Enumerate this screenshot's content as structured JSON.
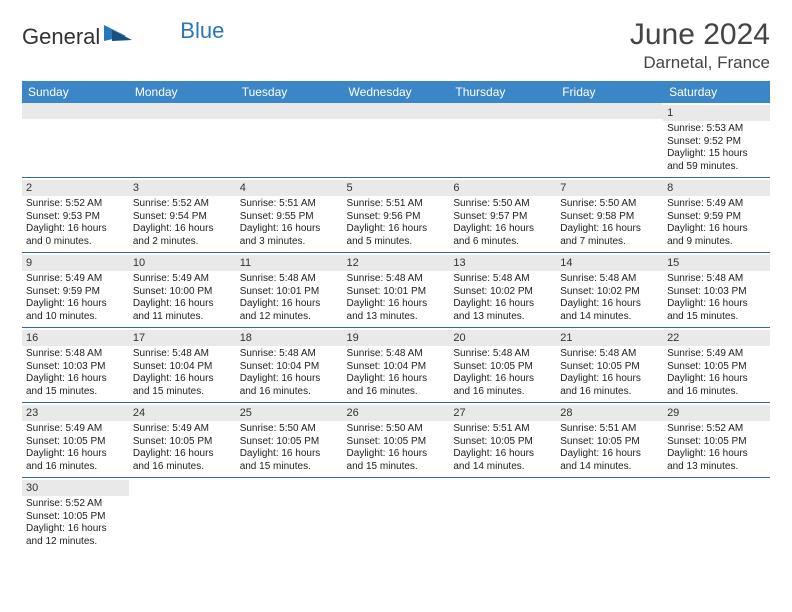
{
  "brand": {
    "part1": "General",
    "part2": "Blue"
  },
  "title": "June 2024",
  "location": "Darnetal, France",
  "colors": {
    "header_bg": "#3b86c6",
    "header_text": "#ffffff",
    "daynum_bg": "#e9e9e9",
    "cell_border": "#2f6aa5",
    "brand_blue": "#2a76bb"
  },
  "weekdays": [
    "Sunday",
    "Monday",
    "Tuesday",
    "Wednesday",
    "Thursday",
    "Friday",
    "Saturday"
  ],
  "weeks": [
    [
      null,
      null,
      null,
      null,
      null,
      null,
      {
        "n": "1",
        "sunrise": "Sunrise: 5:53 AM",
        "sunset": "Sunset: 9:52 PM",
        "day1": "Daylight: 15 hours",
        "day2": "and 59 minutes."
      }
    ],
    [
      {
        "n": "2",
        "sunrise": "Sunrise: 5:52 AM",
        "sunset": "Sunset: 9:53 PM",
        "day1": "Daylight: 16 hours",
        "day2": "and 0 minutes."
      },
      {
        "n": "3",
        "sunrise": "Sunrise: 5:52 AM",
        "sunset": "Sunset: 9:54 PM",
        "day1": "Daylight: 16 hours",
        "day2": "and 2 minutes."
      },
      {
        "n": "4",
        "sunrise": "Sunrise: 5:51 AM",
        "sunset": "Sunset: 9:55 PM",
        "day1": "Daylight: 16 hours",
        "day2": "and 3 minutes."
      },
      {
        "n": "5",
        "sunrise": "Sunrise: 5:51 AM",
        "sunset": "Sunset: 9:56 PM",
        "day1": "Daylight: 16 hours",
        "day2": "and 5 minutes."
      },
      {
        "n": "6",
        "sunrise": "Sunrise: 5:50 AM",
        "sunset": "Sunset: 9:57 PM",
        "day1": "Daylight: 16 hours",
        "day2": "and 6 minutes."
      },
      {
        "n": "7",
        "sunrise": "Sunrise: 5:50 AM",
        "sunset": "Sunset: 9:58 PM",
        "day1": "Daylight: 16 hours",
        "day2": "and 7 minutes."
      },
      {
        "n": "8",
        "sunrise": "Sunrise: 5:49 AM",
        "sunset": "Sunset: 9:59 PM",
        "day1": "Daylight: 16 hours",
        "day2": "and 9 minutes."
      }
    ],
    [
      {
        "n": "9",
        "sunrise": "Sunrise: 5:49 AM",
        "sunset": "Sunset: 9:59 PM",
        "day1": "Daylight: 16 hours",
        "day2": "and 10 minutes."
      },
      {
        "n": "10",
        "sunrise": "Sunrise: 5:49 AM",
        "sunset": "Sunset: 10:00 PM",
        "day1": "Daylight: 16 hours",
        "day2": "and 11 minutes."
      },
      {
        "n": "11",
        "sunrise": "Sunrise: 5:48 AM",
        "sunset": "Sunset: 10:01 PM",
        "day1": "Daylight: 16 hours",
        "day2": "and 12 minutes."
      },
      {
        "n": "12",
        "sunrise": "Sunrise: 5:48 AM",
        "sunset": "Sunset: 10:01 PM",
        "day1": "Daylight: 16 hours",
        "day2": "and 13 minutes."
      },
      {
        "n": "13",
        "sunrise": "Sunrise: 5:48 AM",
        "sunset": "Sunset: 10:02 PM",
        "day1": "Daylight: 16 hours",
        "day2": "and 13 minutes."
      },
      {
        "n": "14",
        "sunrise": "Sunrise: 5:48 AM",
        "sunset": "Sunset: 10:02 PM",
        "day1": "Daylight: 16 hours",
        "day2": "and 14 minutes."
      },
      {
        "n": "15",
        "sunrise": "Sunrise: 5:48 AM",
        "sunset": "Sunset: 10:03 PM",
        "day1": "Daylight: 16 hours",
        "day2": "and 15 minutes."
      }
    ],
    [
      {
        "n": "16",
        "sunrise": "Sunrise: 5:48 AM",
        "sunset": "Sunset: 10:03 PM",
        "day1": "Daylight: 16 hours",
        "day2": "and 15 minutes."
      },
      {
        "n": "17",
        "sunrise": "Sunrise: 5:48 AM",
        "sunset": "Sunset: 10:04 PM",
        "day1": "Daylight: 16 hours",
        "day2": "and 15 minutes."
      },
      {
        "n": "18",
        "sunrise": "Sunrise: 5:48 AM",
        "sunset": "Sunset: 10:04 PM",
        "day1": "Daylight: 16 hours",
        "day2": "and 16 minutes."
      },
      {
        "n": "19",
        "sunrise": "Sunrise: 5:48 AM",
        "sunset": "Sunset: 10:04 PM",
        "day1": "Daylight: 16 hours",
        "day2": "and 16 minutes."
      },
      {
        "n": "20",
        "sunrise": "Sunrise: 5:48 AM",
        "sunset": "Sunset: 10:05 PM",
        "day1": "Daylight: 16 hours",
        "day2": "and 16 minutes."
      },
      {
        "n": "21",
        "sunrise": "Sunrise: 5:48 AM",
        "sunset": "Sunset: 10:05 PM",
        "day1": "Daylight: 16 hours",
        "day2": "and 16 minutes."
      },
      {
        "n": "22",
        "sunrise": "Sunrise: 5:49 AM",
        "sunset": "Sunset: 10:05 PM",
        "day1": "Daylight: 16 hours",
        "day2": "and 16 minutes."
      }
    ],
    [
      {
        "n": "23",
        "sunrise": "Sunrise: 5:49 AM",
        "sunset": "Sunset: 10:05 PM",
        "day1": "Daylight: 16 hours",
        "day2": "and 16 minutes."
      },
      {
        "n": "24",
        "sunrise": "Sunrise: 5:49 AM",
        "sunset": "Sunset: 10:05 PM",
        "day1": "Daylight: 16 hours",
        "day2": "and 16 minutes."
      },
      {
        "n": "25",
        "sunrise": "Sunrise: 5:50 AM",
        "sunset": "Sunset: 10:05 PM",
        "day1": "Daylight: 16 hours",
        "day2": "and 15 minutes."
      },
      {
        "n": "26",
        "sunrise": "Sunrise: 5:50 AM",
        "sunset": "Sunset: 10:05 PM",
        "day1": "Daylight: 16 hours",
        "day2": "and 15 minutes."
      },
      {
        "n": "27",
        "sunrise": "Sunrise: 5:51 AM",
        "sunset": "Sunset: 10:05 PM",
        "day1": "Daylight: 16 hours",
        "day2": "and 14 minutes."
      },
      {
        "n": "28",
        "sunrise": "Sunrise: 5:51 AM",
        "sunset": "Sunset: 10:05 PM",
        "day1": "Daylight: 16 hours",
        "day2": "and 14 minutes."
      },
      {
        "n": "29",
        "sunrise": "Sunrise: 5:52 AM",
        "sunset": "Sunset: 10:05 PM",
        "day1": "Daylight: 16 hours",
        "day2": "and 13 minutes."
      }
    ],
    [
      {
        "n": "30",
        "sunrise": "Sunrise: 5:52 AM",
        "sunset": "Sunset: 10:05 PM",
        "day1": "Daylight: 16 hours",
        "day2": "and 12 minutes."
      },
      null,
      null,
      null,
      null,
      null,
      null
    ]
  ]
}
